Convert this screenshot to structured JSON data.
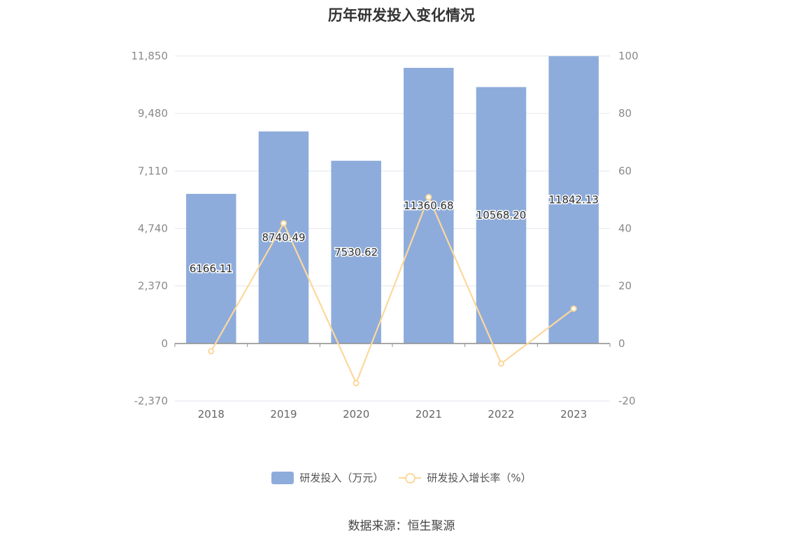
{
  "chart_data": {
    "type": "bar",
    "title": "历年研发投入变化情况",
    "categories": [
      "2018",
      "2019",
      "2020",
      "2021",
      "2022",
      "2023"
    ],
    "series": [
      {
        "name": "研发投入（万元）",
        "type": "bar",
        "axis": "left",
        "color": "#8eacdb",
        "values": [
          6166.11,
          8740.49,
          7530.62,
          11360.68,
          10568.2,
          11842.13
        ],
        "labels": [
          "6166.11",
          "8740.49",
          "7530.62",
          "11360.68",
          "10568.20",
          "11842.13"
        ]
      },
      {
        "name": "研发投入增长率（%）",
        "type": "line",
        "axis": "right",
        "color": "#fcd89c",
        "values": [
          -2.7,
          41.8,
          -13.8,
          50.9,
          -7.0,
          12.1
        ]
      }
    ],
    "left_axis": {
      "ticks": [
        "11,850",
        "9,480",
        "7,110",
        "4,740",
        "2,370",
        "0",
        "-2,370"
      ],
      "tick_values": [
        11850,
        9480,
        7110,
        4740,
        2370,
        0,
        -2370
      ],
      "ylim": [
        -2370,
        11850
      ]
    },
    "right_axis": {
      "ticks": [
        "100",
        "80",
        "60",
        "40",
        "20",
        "0",
        "-20"
      ],
      "tick_values": [
        100,
        80,
        60,
        40,
        20,
        0,
        -20
      ],
      "ylim": [
        -20,
        100
      ]
    },
    "grid": true,
    "legend_position": "bottom"
  },
  "source": "数据来源：恒生聚源"
}
